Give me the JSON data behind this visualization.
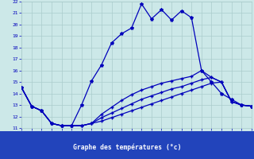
{
  "xlabel": "Graphe des températures (°c)",
  "bg_color": "#cce8e8",
  "line_color": "#0000bb",
  "grid_color": "#aacccc",
  "xlim": [
    0,
    23
  ],
  "ylim": [
    11,
    22
  ],
  "xtick_vals": [
    0,
    1,
    2,
    3,
    4,
    5,
    6,
    7,
    8,
    9,
    10,
    11,
    12,
    13,
    14,
    15,
    16,
    17,
    18,
    19,
    20,
    21,
    22,
    23
  ],
  "ytick_vals": [
    11,
    12,
    13,
    14,
    15,
    16,
    17,
    18,
    19,
    20,
    21,
    22
  ],
  "line1_x": [
    0,
    1,
    2,
    3,
    4,
    5,
    6,
    7,
    8,
    9,
    10,
    11,
    12,
    13,
    14,
    15,
    16,
    17,
    18,
    19,
    20,
    21,
    22,
    23
  ],
  "line1_y": [
    14.5,
    12.9,
    12.5,
    11.4,
    11.2,
    11.2,
    13.0,
    15.1,
    16.5,
    18.4,
    19.2,
    19.7,
    21.8,
    20.5,
    21.3,
    20.4,
    21.2,
    20.6,
    16.0,
    15.0,
    14.0,
    13.5,
    13.0,
    12.9
  ],
  "line2_x": [
    0,
    1,
    2,
    3,
    4,
    5,
    6,
    7,
    8,
    9,
    10,
    11,
    12,
    13,
    14,
    15,
    16,
    17,
    18,
    19,
    20,
    21,
    22,
    23
  ],
  "line2_y": [
    14.5,
    12.9,
    12.5,
    11.4,
    11.2,
    11.2,
    11.2,
    11.4,
    11.6,
    11.9,
    12.2,
    12.5,
    12.8,
    13.1,
    13.4,
    13.7,
    14.0,
    14.3,
    14.6,
    14.9,
    15.0,
    13.3,
    13.0,
    12.9
  ],
  "line3_x": [
    0,
    1,
    2,
    3,
    4,
    5,
    6,
    7,
    8,
    9,
    10,
    11,
    12,
    13,
    14,
    15,
    16,
    17,
    18,
    19,
    20,
    21,
    22,
    23
  ],
  "line3_y": [
    14.5,
    12.9,
    12.5,
    11.4,
    11.2,
    11.2,
    11.2,
    11.4,
    11.9,
    12.3,
    12.7,
    13.1,
    13.5,
    13.8,
    14.1,
    14.4,
    14.6,
    14.9,
    15.2,
    15.4,
    15.0,
    13.3,
    13.0,
    12.9
  ],
  "line4_x": [
    0,
    1,
    2,
    3,
    4,
    5,
    6,
    7,
    8,
    9,
    10,
    11,
    12,
    13,
    14,
    15,
    16,
    17,
    18,
    19,
    20,
    21,
    22,
    23
  ],
  "line4_y": [
    14.5,
    12.9,
    12.5,
    11.4,
    11.2,
    11.2,
    11.2,
    11.4,
    12.2,
    12.8,
    13.4,
    13.9,
    14.3,
    14.6,
    14.9,
    15.1,
    15.3,
    15.5,
    16.0,
    15.4,
    15.0,
    13.3,
    13.0,
    12.9
  ],
  "bottom_bar_color": "#2244bb",
  "bottom_text_color": "#ffffff",
  "marker1": "*",
  "marker234": "+"
}
